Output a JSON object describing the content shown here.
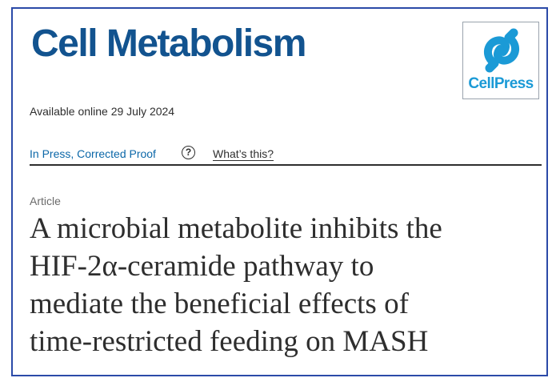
{
  "journal": {
    "title": "Cell Metabolism"
  },
  "publisher": {
    "logo_text": "CellPress",
    "logo_icon": "cellpress-logo-icon",
    "brand_color": "#1b9ad6"
  },
  "availability": {
    "text": "Available online 29 July 2024"
  },
  "status": {
    "label": "In Press, Corrected Proof",
    "help_icon": "question-circle-icon",
    "help_glyph": "?",
    "help_link": "What’s this?"
  },
  "article": {
    "type": "Article",
    "title_lines": [
      "A microbial metabolite inhibits the",
      "HIF-2α-ceramide pathway to",
      "mediate the beneficial effects of",
      "time-restricted feeding on MASH"
    ]
  },
  "colors": {
    "journal_title": "#12538f",
    "link": "#0b67a8",
    "frame_border": "#2b4aa8",
    "text": "#2e2e2e"
  }
}
